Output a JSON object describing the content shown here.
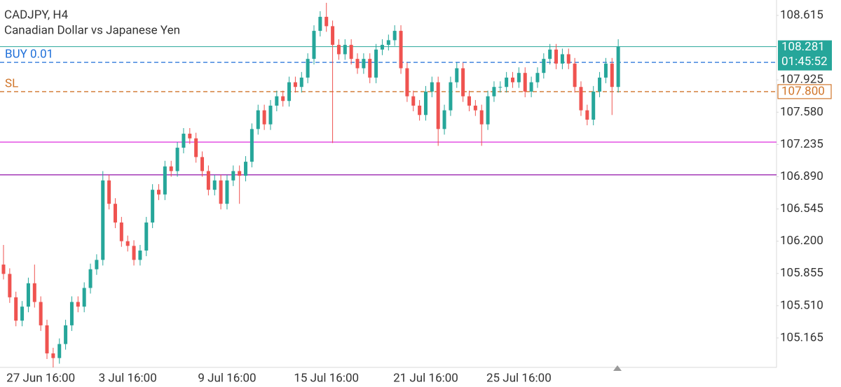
{
  "chart_data": {
    "type": "candlestick",
    "title": "CADJPY, H4",
    "subtitle": "Canadian Dollar vs Japanese Yen",
    "up_color": "#26a69a",
    "down_color": "#ef5350",
    "ylim": [
      104.85,
      108.78
    ],
    "yticks": [
      108.615,
      107.925,
      {
        "value": 107.58,
        "label": "107.580"
      },
      107.235,
      {
        "value": 106.89,
        "label": "106.890"
      },
      106.545,
      {
        "value": 106.2,
        "label": "106.200"
      },
      105.855,
      {
        "value": 105.51,
        "label": "105.510"
      },
      105.165
    ],
    "grid": false,
    "current_price": 108.281,
    "current_price_color": "#26a69a",
    "countdown": "01:45:52",
    "levels": [
      {
        "label": "BUY 0.01",
        "value": 108.113,
        "color": "#1e6fd9",
        "style": "dashed"
      },
      {
        "label": "SL",
        "value": 107.8,
        "value_label": "107.800",
        "color": "#d0752a",
        "style": "dashed"
      },
      {
        "value": 107.26,
        "color": "#e040e0",
        "style": "solid"
      },
      {
        "value": 106.91,
        "color": "#9c27b0",
        "style": "solid"
      }
    ],
    "categories": [
      null,
      null,
      null,
      null,
      null,
      null,
      "27 Jun 16:00",
      null,
      null,
      null,
      null,
      null,
      null,
      null,
      null,
      null,
      null,
      null,
      null,
      null,
      "3 Jul 16:00",
      null,
      null,
      null,
      null,
      null,
      null,
      null,
      null,
      null,
      null,
      null,
      null,
      null,
      null,
      null,
      "9 Jul 16:00",
      null,
      null,
      null,
      null,
      null,
      null,
      null,
      null,
      null,
      null,
      null,
      null,
      null,
      null,
      null,
      "15 Jul 16:00",
      null,
      null,
      null,
      null,
      null,
      null,
      null,
      null,
      null,
      null,
      null,
      null,
      null,
      null,
      null,
      "21 Jul 16:00",
      null,
      null,
      null,
      null,
      null,
      null,
      null,
      null,
      null,
      null,
      null,
      null,
      null,
      null,
      "25 Jul 16:00",
      null,
      null,
      null,
      null,
      null,
      null,
      null,
      null,
      null,
      null,
      null,
      null,
      null,
      null,
      null,
      null
    ],
    "open": [
      105.95,
      105.85,
      105.6,
      105.35,
      105.5,
      105.75,
      105.55,
      105.3,
      105.0,
      104.95,
      105.1,
      105.3,
      105.55,
      105.5,
      105.7,
      105.9,
      106.0,
      106.85,
      106.6,
      106.4,
      106.2,
      106.15,
      106.0,
      106.1,
      106.4,
      106.75,
      106.7,
      107.0,
      106.95,
      107.2,
      107.35,
      107.3,
      107.1,
      106.95,
      106.75,
      106.85,
      106.6,
      106.85,
      106.95,
      106.9,
      107.05,
      107.4,
      107.6,
      107.45,
      107.65,
      107.75,
      107.7,
      107.9,
      107.85,
      107.95,
      108.15,
      108.45,
      108.6,
      108.5,
      108.3,
      108.2,
      108.3,
      108.15,
      108.05,
      108.15,
      107.95,
      108.25,
      108.3,
      108.35,
      108.45,
      108.05,
      107.75,
      107.65,
      107.55,
      107.8,
      107.9,
      107.4,
      107.6,
      107.9,
      108.05,
      107.75,
      107.65,
      107.6,
      107.45,
      107.75,
      107.85,
      107.85,
      107.95,
      107.9,
      108.0,
      107.8,
      107.9,
      108.0,
      108.15,
      108.25,
      108.1,
      108.2,
      108.1,
      107.85,
      107.6,
      107.5,
      107.8,
      107.95,
      108.1,
      107.85
    ],
    "high": [
      106.16,
      105.91,
      105.66,
      105.56,
      105.81,
      105.95,
      105.61,
      105.36,
      105.06,
      105.16,
      105.36,
      105.61,
      105.61,
      105.76,
      105.96,
      106.06,
      106.95,
      106.91,
      106.66,
      106.46,
      106.26,
      106.21,
      106.16,
      106.46,
      106.81,
      106.81,
      107.06,
      107.06,
      107.26,
      107.41,
      107.41,
      107.36,
      107.16,
      107.01,
      106.91,
      106.91,
      106.91,
      107.01,
      107.01,
      107.11,
      107.46,
      107.66,
      107.66,
      107.71,
      107.81,
      107.81,
      107.96,
      107.96,
      108.01,
      108.21,
      108.51,
      108.66,
      108.75,
      108.56,
      108.36,
      108.36,
      108.36,
      108.21,
      108.21,
      108.21,
      108.31,
      108.36,
      108.41,
      108.51,
      108.51,
      108.11,
      107.81,
      107.71,
      107.86,
      107.96,
      107.96,
      107.66,
      107.96,
      108.11,
      108.11,
      107.81,
      107.71,
      107.66,
      107.81,
      107.91,
      107.91,
      108.01,
      108.01,
      108.06,
      108.06,
      107.96,
      108.06,
      108.21,
      108.31,
      108.31,
      108.26,
      108.26,
      108.16,
      107.91,
      107.66,
      107.86,
      108.01,
      108.16,
      108.16,
      108.36
    ],
    "low": [
      105.79,
      105.54,
      105.29,
      105.29,
      105.44,
      105.49,
      105.24,
      104.94,
      104.85,
      104.89,
      105.04,
      105.24,
      105.44,
      105.44,
      105.64,
      105.84,
      105.94,
      106.54,
      106.34,
      106.14,
      106.09,
      105.94,
      105.94,
      106.04,
      106.34,
      106.64,
      106.64,
      106.89,
      106.89,
      107.14,
      107.24,
      107.04,
      106.89,
      106.69,
      106.69,
      106.54,
      106.54,
      106.79,
      106.6,
      106.84,
      106.99,
      107.34,
      107.39,
      107.39,
      107.59,
      107.64,
      107.64,
      107.79,
      107.79,
      107.89,
      108.09,
      108.39,
      108.44,
      107.25,
      108.14,
      108.14,
      108.09,
      107.99,
      107.99,
      107.89,
      107.89,
      108.19,
      108.24,
      108.29,
      107.99,
      107.69,
      107.59,
      107.49,
      107.49,
      107.74,
      107.22,
      107.34,
      107.54,
      107.84,
      107.69,
      107.59,
      107.54,
      107.22,
      107.39,
      107.69,
      107.79,
      107.79,
      107.84,
      107.84,
      107.74,
      107.74,
      107.84,
      107.94,
      108.09,
      108.04,
      108.04,
      108.04,
      107.79,
      107.54,
      107.44,
      107.44,
      107.74,
      107.89,
      107.55,
      107.79
    ],
    "close": [
      105.85,
      105.6,
      105.35,
      105.5,
      105.75,
      105.55,
      105.3,
      105.0,
      104.95,
      105.1,
      105.3,
      105.55,
      105.5,
      105.7,
      105.9,
      106.0,
      106.85,
      106.6,
      106.4,
      106.2,
      106.15,
      106.0,
      106.1,
      106.4,
      106.75,
      106.7,
      107.0,
      106.95,
      107.2,
      107.35,
      107.3,
      107.1,
      106.95,
      106.75,
      106.85,
      106.6,
      106.85,
      106.95,
      106.9,
      107.05,
      107.4,
      107.6,
      107.45,
      107.65,
      107.75,
      107.7,
      107.9,
      107.85,
      107.95,
      108.15,
      108.45,
      108.6,
      108.5,
      108.3,
      108.2,
      108.3,
      108.15,
      108.05,
      108.15,
      107.95,
      108.25,
      108.3,
      108.35,
      108.45,
      108.05,
      107.75,
      107.65,
      107.55,
      107.8,
      107.9,
      107.4,
      107.6,
      107.9,
      108.05,
      107.75,
      107.65,
      107.6,
      107.45,
      107.75,
      107.85,
      107.85,
      107.95,
      107.9,
      108.0,
      107.8,
      107.9,
      108.0,
      108.15,
      108.25,
      108.1,
      108.2,
      108.1,
      107.85,
      107.6,
      107.5,
      107.8,
      107.95,
      108.1,
      107.85,
      108.281
    ]
  }
}
